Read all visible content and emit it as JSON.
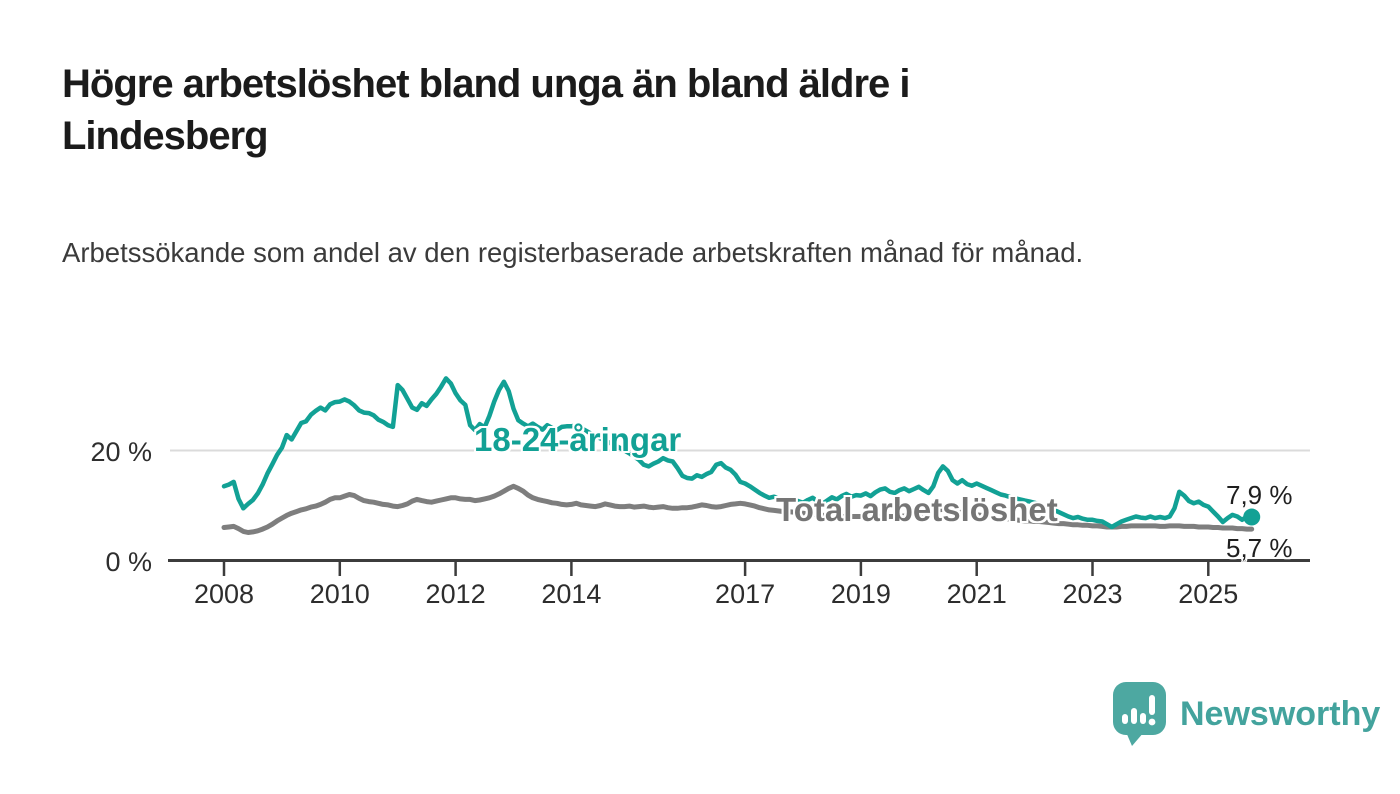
{
  "title": "Högre arbetslöshet bland unga än bland äldre i Lindesberg",
  "subtitle": "Arbetssökande som andel av den registerbaserade arbetskraften månad för månad.",
  "colors": {
    "youth_line": "#12a195",
    "total_line": "#7e7e7e",
    "total_label": "#757575",
    "grid": "#dbdbdb",
    "axis": "#3c3c3c",
    "logo_teal": "#4da8a1",
    "wordmark_teal": "#43a39d"
  },
  "logo": {
    "text": "Newsworthy"
  },
  "chart_data": {
    "type": "line",
    "x_start": "2008-01",
    "x_end": "2025-10",
    "x_interval": "monthly",
    "ylim": [
      0,
      35
    ],
    "grid": "single horizontal gridline at 20 %",
    "gridlines": [
      20
    ],
    "legend": "inline labels on lines",
    "y_ticks": [
      {
        "value": 20,
        "label": "20 %"
      },
      {
        "value": 0,
        "label": "0 %"
      }
    ],
    "x_ticks": [
      {
        "year": 2008,
        "label": "2008"
      },
      {
        "year": 2010,
        "label": "2010"
      },
      {
        "year": 2012,
        "label": "2012"
      },
      {
        "year": 2014,
        "label": "2014"
      },
      {
        "year": 2017,
        "label": "2017"
      },
      {
        "year": 2019,
        "label": "2019"
      },
      {
        "year": 2021,
        "label": "2021"
      },
      {
        "year": 2023,
        "label": "2023"
      },
      {
        "year": 2025,
        "label": "2025"
      }
    ],
    "series": [
      {
        "name": "18-24-åringar",
        "color": "#12a195",
        "end_label": "7,9 %",
        "end_value": 7.9,
        "values": [
          13.5,
          13.8,
          14.3,
          11.2,
          9.5,
          10.3,
          11.0,
          12.2,
          13.8,
          15.8,
          17.5,
          19.2,
          20.5,
          22.8,
          22.0,
          23.5,
          25.0,
          25.3,
          26.5,
          27.2,
          27.8,
          27.3,
          28.4,
          28.8,
          28.9,
          29.3,
          28.9,
          28.2,
          27.3,
          26.9,
          26.8,
          26.4,
          25.6,
          25.2,
          24.6,
          24.3,
          31.9,
          31.0,
          29.4,
          27.8,
          27.4,
          28.6,
          28.1,
          29.3,
          30.3,
          31.6,
          33.1,
          32.2,
          30.4,
          29.1,
          28.3,
          24.6,
          23.7,
          24.8,
          24.2,
          26.3,
          28.9,
          31.0,
          32.5,
          30.8,
          27.6,
          25.5,
          24.9,
          24.4,
          24.9,
          24.3,
          23.8,
          24.6,
          24.1,
          23.7,
          24.3,
          24.4,
          24.4,
          24.6,
          24.1,
          23.6,
          23.1,
          22.6,
          22.2,
          21.8,
          21.4,
          21.0,
          20.5,
          20.0,
          19.5,
          18.9,
          18.3,
          17.4,
          17.1,
          17.6,
          18.0,
          18.6,
          18.2,
          18.0,
          16.8,
          15.4,
          15.0,
          14.9,
          15.5,
          15.2,
          15.7,
          16.1,
          17.4,
          17.7,
          16.9,
          16.5,
          15.6,
          14.3,
          14.0,
          13.5,
          12.9,
          12.3,
          11.8,
          11.4,
          11.6,
          11.2,
          11.0,
          11.3,
          11.1,
          10.8,
          10.5,
          11.0,
          11.4,
          10.8,
          10.3,
          10.9,
          11.5,
          11.1,
          11.7,
          12.1,
          11.6,
          11.9,
          11.8,
          12.2,
          11.7,
          12.4,
          12.9,
          13.1,
          12.5,
          12.3,
          12.8,
          13.1,
          12.6,
          13.0,
          13.4,
          12.8,
          12.3,
          13.5,
          15.9,
          17.1,
          16.3,
          14.6,
          14.0,
          14.6,
          13.9,
          13.6,
          14.0,
          13.6,
          13.2,
          12.8,
          12.4,
          12.0,
          11.8,
          11.5,
          11.3,
          11.1,
          10.9,
          10.7,
          10.5,
          10.2,
          9.9,
          9.6,
          9.2,
          8.8,
          8.4,
          8.0,
          7.7,
          7.9,
          7.6,
          7.4,
          7.4,
          7.2,
          7.1,
          6.6,
          6.1,
          6.6,
          7.1,
          7.4,
          7.7,
          8.0,
          7.8,
          7.7,
          8.0,
          7.7,
          7.9,
          7.7,
          8.0,
          9.5,
          12.5,
          11.8,
          10.8,
          10.4,
          10.7,
          10.1,
          9.8,
          8.9,
          8.0,
          7.0,
          7.7,
          8.3,
          8.0,
          7.4,
          8.0,
          7.9
        ]
      },
      {
        "name": "Total arbetslöshet",
        "color": "#7e7e7e",
        "end_label": "5,7 %",
        "end_value": 5.7,
        "values": [
          6.0,
          6.1,
          6.2,
          5.8,
          5.3,
          5.1,
          5.2,
          5.4,
          5.7,
          6.1,
          6.6,
          7.2,
          7.7,
          8.2,
          8.6,
          8.9,
          9.2,
          9.4,
          9.7,
          9.9,
          10.2,
          10.6,
          11.1,
          11.4,
          11.4,
          11.7,
          12.0,
          11.8,
          11.3,
          10.9,
          10.7,
          10.6,
          10.4,
          10.2,
          10.1,
          9.9,
          9.8,
          10.0,
          10.3,
          10.8,
          11.1,
          10.9,
          10.7,
          10.6,
          10.8,
          11.0,
          11.2,
          11.4,
          11.4,
          11.2,
          11.1,
          11.1,
          10.9,
          11.0,
          11.2,
          11.4,
          11.7,
          12.1,
          12.6,
          13.1,
          13.5,
          13.1,
          12.6,
          11.9,
          11.4,
          11.1,
          10.9,
          10.7,
          10.5,
          10.4,
          10.2,
          10.1,
          10.2,
          10.4,
          10.1,
          10.0,
          9.9,
          9.8,
          10.0,
          10.3,
          10.1,
          9.9,
          9.8,
          9.8,
          9.9,
          9.7,
          9.8,
          9.9,
          9.7,
          9.6,
          9.7,
          9.8,
          9.6,
          9.5,
          9.5,
          9.6,
          9.6,
          9.7,
          9.9,
          10.1,
          10.0,
          9.8,
          9.7,
          9.8,
          10.0,
          10.2,
          10.3,
          10.4,
          10.3,
          10.1,
          9.9,
          9.6,
          9.4,
          9.2,
          9.1,
          9.0,
          8.9,
          8.9,
          8.8,
          8.7,
          8.6,
          8.5,
          8.4,
          8.3,
          8.2,
          8.2,
          8.1,
          8.1,
          8.0,
          8.0,
          8.0,
          8.0,
          8.0,
          8.0,
          7.9,
          7.9,
          7.9,
          7.9,
          8.0,
          8.0,
          8.0,
          8.1,
          8.1,
          8.2,
          8.3,
          8.4,
          8.6,
          9.0,
          9.2,
          9.3,
          9.2,
          9.1,
          9.0,
          8.8,
          8.6,
          8.5,
          8.3,
          8.2,
          8.0,
          7.9,
          7.8,
          7.7,
          7.6,
          7.5,
          7.4,
          7.3,
          7.2,
          7.2,
          7.1,
          7.1,
          7.0,
          6.9,
          6.8,
          6.7,
          6.7,
          6.6,
          6.5,
          6.5,
          6.4,
          6.4,
          6.3,
          6.3,
          6.2,
          6.1,
          6.1,
          6.1,
          6.2,
          6.2,
          6.3,
          6.3,
          6.3,
          6.3,
          6.3,
          6.3,
          6.2,
          6.2,
          6.3,
          6.3,
          6.3,
          6.2,
          6.2,
          6.2,
          6.1,
          6.1,
          6.1,
          6.0,
          6.0,
          5.9,
          5.9,
          5.9,
          5.8,
          5.8,
          5.7,
          5.7
        ]
      }
    ]
  }
}
